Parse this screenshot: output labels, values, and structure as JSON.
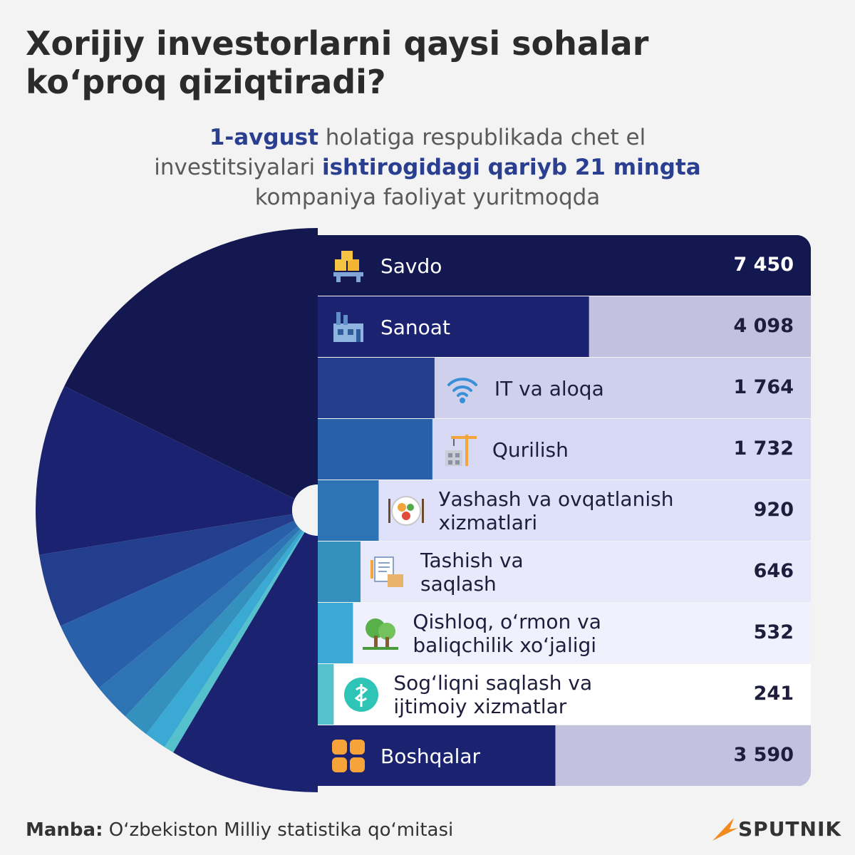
{
  "header": {
    "title_line1": "Xorijiy investorlarni qaysi sohalar",
    "title_line2": "koʻproq qiziqtiradi?"
  },
  "subtitle": {
    "part1": "1-avgust",
    "part2": " holatiga respublikada chet el",
    "part3": "investitsiyalari ",
    "part4": "ishtirogidagi qariyb 21 mingta",
    "part5": "kompaniya faoliyat yuritmoqda"
  },
  "chart_data": {
    "type": "bar",
    "categories": [
      "Savdo",
      "Sanoat",
      "IT va aloqa",
      "Qurilish",
      "Yashash va ovqatlanish xizmatlari",
      "Tashish va saqlash",
      "Qishloq, oʻrmon va baliqchilik xoʻjaligi",
      "Sogʻliqni saqlash va ijtimoiy xizmatlar",
      "Boshqalar"
    ],
    "values": [
      7450,
      4098,
      1764,
      1732,
      920,
      646,
      532,
      241,
      3590
    ],
    "value_labels": [
      "7 450",
      "4 098",
      "1 764",
      "1 732",
      "920",
      "646",
      "532",
      "241",
      "3 590"
    ],
    "label_lines": [
      [
        "Savdo"
      ],
      [
        "Sanoat"
      ],
      [
        "IT va aloqa"
      ],
      [
        "Qurilish"
      ],
      [
        "Уashash va ovqatlanish",
        "xizmatlari"
      ],
      [
        "Tashish va",
        "saqlash"
      ],
      [
        "Qishloq, oʻrmon va",
        "baliqchilik xoʻjaligi"
      ],
      [
        "Sogʻliqni saqlash va",
        "ijtimoiy xizmatlar"
      ],
      [
        "Boshqalar"
      ]
    ],
    "colors": [
      "#141850",
      "#1b2270",
      "#233e8c",
      "#2960aa",
      "#2e74b4",
      "#3491bd",
      "#3aa9d4",
      "#55c1cc",
      "#1b2270"
    ],
    "track_colors": [
      "#141850",
      "#c2c2de",
      "#cfd0ec",
      "#d6d8f4",
      "#dfe1fa",
      "#e8eafc",
      "#f0f1fd",
      "#ffffff",
      "#c2c2de"
    ],
    "icons": [
      "boxes-icon",
      "factory-icon",
      "wifi-icon",
      "crane-icon",
      "plate-icon",
      "clipboard-box-icon",
      "trees-icon",
      "medical-icon",
      "grid-icon"
    ],
    "ylim": [
      0,
      7450
    ]
  },
  "footer": {
    "source_label": "Manba:",
    "source_text": " Oʻzbekiston Milliy statistika qoʻmitasi",
    "logo_text": "SPUTNIK"
  }
}
